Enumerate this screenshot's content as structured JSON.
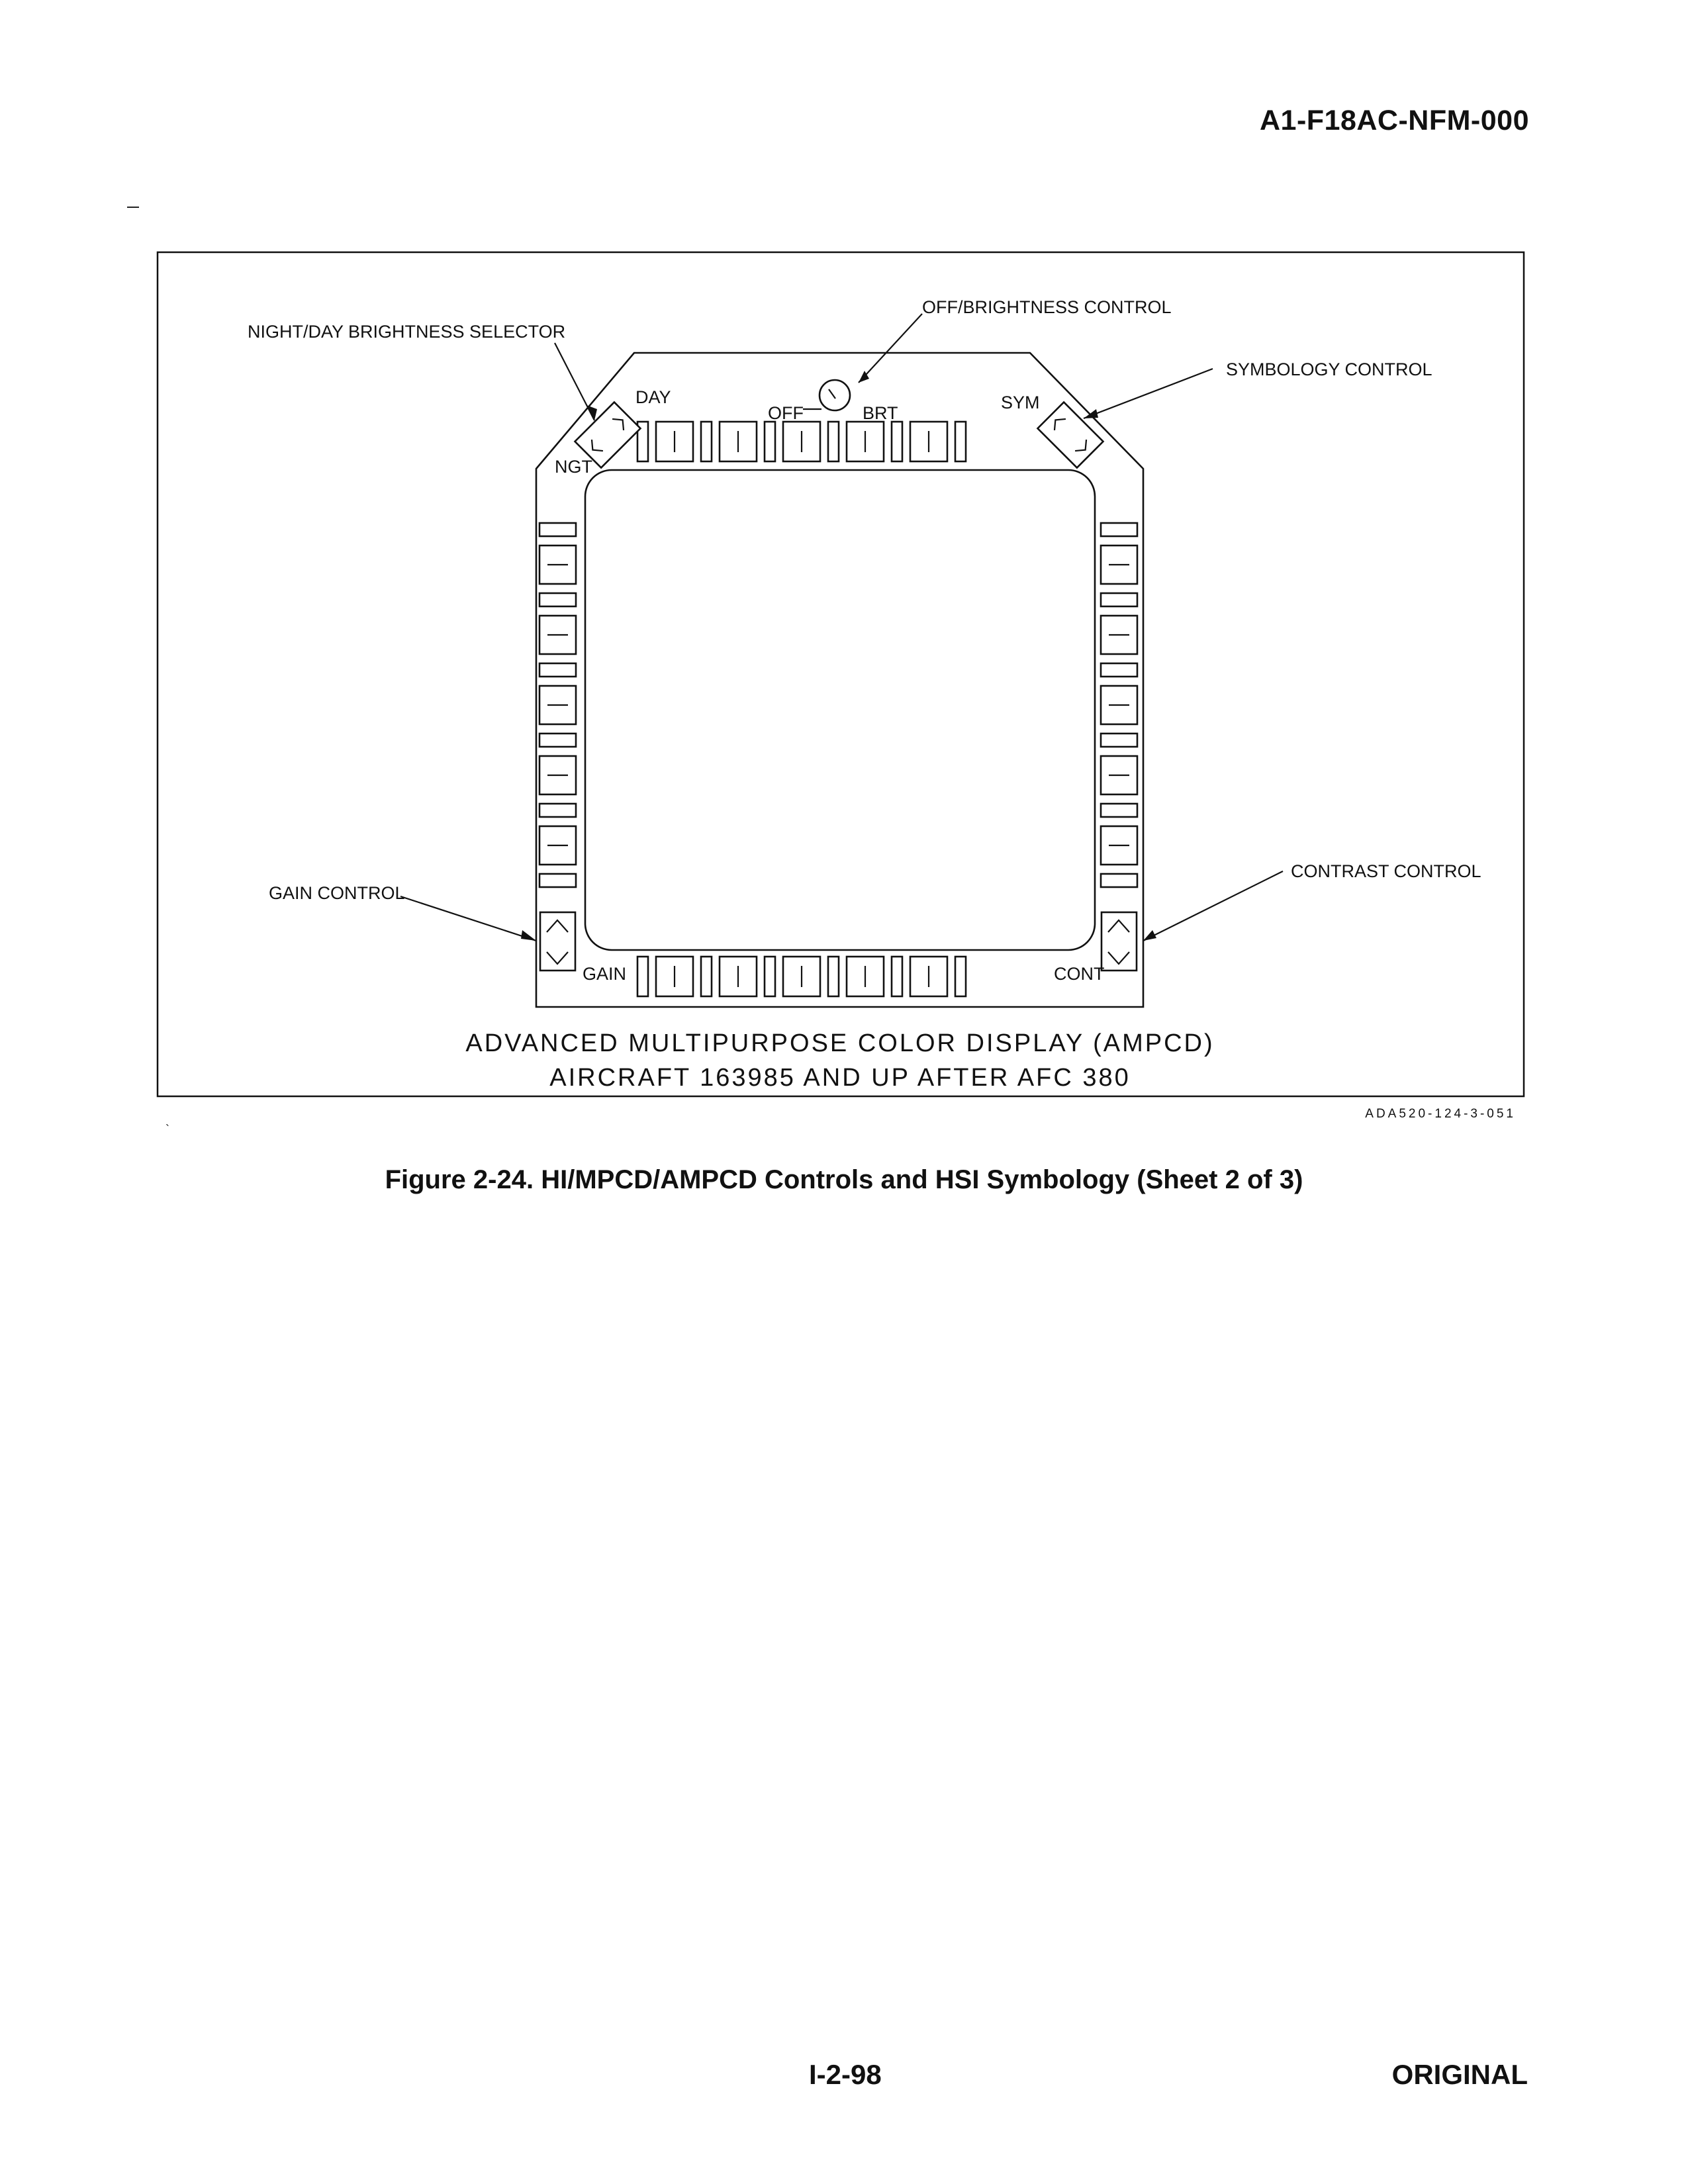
{
  "header": {
    "document_id": "A1-F18AC-NFM-000"
  },
  "figure": {
    "callouts": {
      "night_day_selector": "NIGHT/DAY BRIGHTNESS SELECTOR",
      "off_brightness": "OFF/BRIGHTNESS CONTROL",
      "symbology": "SYMBOLOGY CONTROL",
      "gain": "GAIN CONTROL",
      "contrast": "CONTRAST CONTROL"
    },
    "panel_labels": {
      "day": "DAY",
      "ngt": "NGT",
      "off": "OFF",
      "brt": "BRT",
      "sym": "SYM",
      "gain": "GAIN",
      "cont": "CONT"
    },
    "title_line1": "ADVANCED MULTIPURPOSE COLOR DISPLAY (AMPCD)",
    "title_line2": "AIRCRAFT 163985 AND UP AFTER AFC 380",
    "reference": "ADA520-124-3-051"
  },
  "caption": "Figure 2-24. HI/MPCD/AMPCD Controls and HSI Symbology (Sheet 2 of 3)",
  "footer": {
    "page_number": "I-2-98",
    "status": "ORIGINAL"
  }
}
